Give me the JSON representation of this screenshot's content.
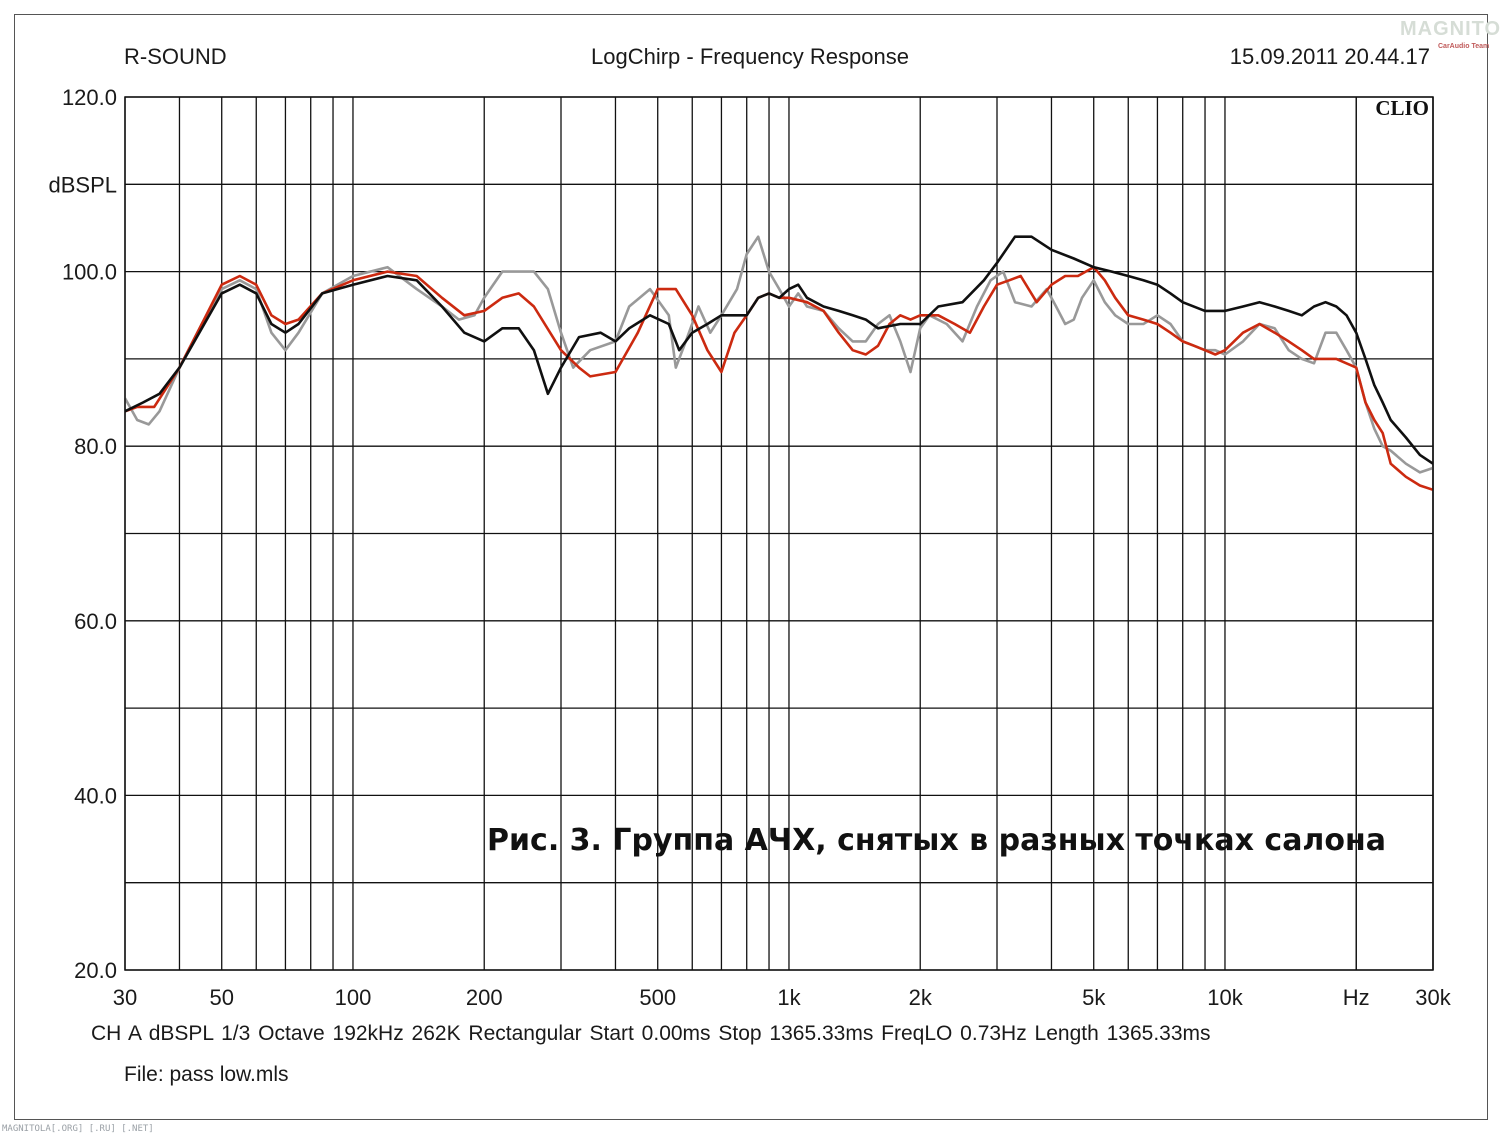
{
  "header": {
    "left": "R-SOUND",
    "center": "LogChirp - Frequency Response",
    "right": "15.09.2011 20.44.17"
  },
  "brand": {
    "name": "MAGNITOLA",
    "sub": "CarAudio Team"
  },
  "chart_data": {
    "type": "line",
    "title": "LogChirp - Frequency Response",
    "xlabel": "Hz",
    "ylabel": "dBSPL",
    "x_scale": "log",
    "xlim": [
      30,
      30000
    ],
    "ylim": [
      20,
      120
    ],
    "grid": true,
    "x_tick_labels": [
      {
        "f": 30,
        "label": "30"
      },
      {
        "f": 50,
        "label": "50"
      },
      {
        "f": 100,
        "label": "100"
      },
      {
        "f": 200,
        "label": "200"
      },
      {
        "f": 500,
        "label": "500"
      },
      {
        "f": 1000,
        "label": "1k"
      },
      {
        "f": 2000,
        "label": "2k"
      },
      {
        "f": 5000,
        "label": "5k"
      },
      {
        "f": 10000,
        "label": "10k"
      },
      {
        "f": 20000,
        "label": "Hz"
      },
      {
        "f": 30000,
        "label": "30k"
      }
    ],
    "y_tick_labels": [
      {
        "v": 120,
        "label": "120.0"
      },
      {
        "v": 110,
        "label": "dBSPL"
      },
      {
        "v": 100,
        "label": "100.0"
      },
      {
        "v": 80,
        "label": "80.0"
      },
      {
        "v": 60,
        "label": "60.0"
      },
      {
        "v": 40,
        "label": "40.0"
      },
      {
        "v": 20,
        "label": "20.0"
      }
    ],
    "annotation": "Рис. 3. Группа АЧХ, снятых в разных точках салона",
    "badge": "CLIO",
    "series": [
      {
        "color": "#999999",
        "points": [
          [
            30,
            85.5
          ],
          [
            32,
            83
          ],
          [
            34,
            82.5
          ],
          [
            36,
            84
          ],
          [
            40,
            89
          ],
          [
            45,
            94
          ],
          [
            50,
            98
          ],
          [
            55,
            99
          ],
          [
            60,
            98
          ],
          [
            65,
            93
          ],
          [
            70,
            91
          ],
          [
            75,
            93
          ],
          [
            85,
            97.5
          ],
          [
            100,
            99.5
          ],
          [
            120,
            100.5
          ],
          [
            140,
            98
          ],
          [
            160,
            96
          ],
          [
            175,
            94.5
          ],
          [
            190,
            95
          ],
          [
            200,
            97
          ],
          [
            220,
            100
          ],
          [
            260,
            100
          ],
          [
            280,
            98
          ],
          [
            300,
            93
          ],
          [
            320,
            89
          ],
          [
            350,
            91
          ],
          [
            400,
            92
          ],
          [
            430,
            96
          ],
          [
            480,
            98
          ],
          [
            530,
            95
          ],
          [
            550,
            89
          ],
          [
            580,
            92
          ],
          [
            620,
            96
          ],
          [
            660,
            93
          ],
          [
            700,
            95
          ],
          [
            760,
            98
          ],
          [
            800,
            102
          ],
          [
            850,
            104
          ],
          [
            900,
            100
          ],
          [
            950,
            98
          ],
          [
            1000,
            96
          ],
          [
            1050,
            97.5
          ],
          [
            1100,
            96
          ],
          [
            1200,
            95.5
          ],
          [
            1300,
            93.5
          ],
          [
            1400,
            92
          ],
          [
            1500,
            92
          ],
          [
            1600,
            94
          ],
          [
            1700,
            95
          ],
          [
            1800,
            92
          ],
          [
            1900,
            88.5
          ],
          [
            2000,
            93.5
          ],
          [
            2100,
            95
          ],
          [
            2300,
            94
          ],
          [
            2500,
            92
          ],
          [
            2700,
            96
          ],
          [
            2900,
            99
          ],
          [
            3100,
            100
          ],
          [
            3300,
            96.5
          ],
          [
            3600,
            96
          ],
          [
            3900,
            98
          ],
          [
            4100,
            96
          ],
          [
            4300,
            94
          ],
          [
            4500,
            94.5
          ],
          [
            4700,
            97
          ],
          [
            5000,
            99
          ],
          [
            5300,
            96.5
          ],
          [
            5600,
            95
          ],
          [
            6000,
            94
          ],
          [
            6500,
            94
          ],
          [
            7000,
            95
          ],
          [
            7500,
            94
          ],
          [
            8000,
            92
          ],
          [
            8500,
            91.5
          ],
          [
            9000,
            91
          ],
          [
            9500,
            91
          ],
          [
            10000,
            90.5
          ],
          [
            11000,
            92
          ],
          [
            12000,
            94
          ],
          [
            13000,
            93.5
          ],
          [
            14000,
            91
          ],
          [
            15000,
            90
          ],
          [
            16000,
            89.5
          ],
          [
            17000,
            93
          ],
          [
            18000,
            93
          ],
          [
            19000,
            91
          ],
          [
            20000,
            89
          ],
          [
            21000,
            85
          ],
          [
            22000,
            82
          ],
          [
            23000,
            80
          ],
          [
            24000,
            79.5
          ],
          [
            26000,
            78
          ],
          [
            28000,
            77
          ],
          [
            30000,
            77.5
          ]
        ]
      },
      {
        "color": "#cc2a10",
        "points": [
          [
            30,
            84
          ],
          [
            32,
            84.5
          ],
          [
            35,
            84.5
          ],
          [
            40,
            89
          ],
          [
            45,
            94
          ],
          [
            50,
            98.5
          ],
          [
            55,
            99.5
          ],
          [
            60,
            98.5
          ],
          [
            65,
            95
          ],
          [
            70,
            94
          ],
          [
            75,
            94.5
          ],
          [
            85,
            97.5
          ],
          [
            100,
            99
          ],
          [
            120,
            100
          ],
          [
            140,
            99.5
          ],
          [
            160,
            97
          ],
          [
            180,
            95
          ],
          [
            200,
            95.5
          ],
          [
            220,
            97
          ],
          [
            240,
            97.5
          ],
          [
            260,
            96
          ],
          [
            300,
            91
          ],
          [
            330,
            89
          ],
          [
            350,
            88
          ],
          [
            400,
            88.5
          ],
          [
            450,
            93
          ],
          [
            500,
            98
          ],
          [
            550,
            98
          ],
          [
            600,
            95
          ],
          [
            650,
            91
          ],
          [
            700,
            88.5
          ],
          [
            750,
            93
          ],
          [
            800,
            95
          ],
          [
            850,
            97
          ],
          [
            900,
            97.5
          ],
          [
            950,
            97
          ],
          [
            1000,
            97
          ],
          [
            1100,
            96.5
          ],
          [
            1200,
            95.5
          ],
          [
            1300,
            93
          ],
          [
            1400,
            91
          ],
          [
            1500,
            90.5
          ],
          [
            1600,
            91.5
          ],
          [
            1700,
            94
          ],
          [
            1800,
            95
          ],
          [
            1900,
            94.5
          ],
          [
            2000,
            95
          ],
          [
            2200,
            95
          ],
          [
            2400,
            94
          ],
          [
            2600,
            93
          ],
          [
            2800,
            96
          ],
          [
            3000,
            98.5
          ],
          [
            3200,
            99
          ],
          [
            3400,
            99.5
          ],
          [
            3700,
            96.5
          ],
          [
            4000,
            98.5
          ],
          [
            4300,
            99.5
          ],
          [
            4600,
            99.5
          ],
          [
            5000,
            100.5
          ],
          [
            5300,
            99
          ],
          [
            5600,
            97
          ],
          [
            6000,
            95
          ],
          [
            6500,
            94.5
          ],
          [
            7000,
            94
          ],
          [
            7500,
            93
          ],
          [
            8000,
            92
          ],
          [
            8500,
            91.5
          ],
          [
            9000,
            91
          ],
          [
            9500,
            90.5
          ],
          [
            10000,
            91
          ],
          [
            11000,
            93
          ],
          [
            12000,
            94
          ],
          [
            13000,
            93
          ],
          [
            14000,
            92
          ],
          [
            15000,
            91
          ],
          [
            16000,
            90
          ],
          [
            18000,
            90
          ],
          [
            20000,
            89
          ],
          [
            21000,
            85
          ],
          [
            22000,
            83
          ],
          [
            23000,
            81.5
          ],
          [
            24000,
            78
          ],
          [
            26000,
            76.5
          ],
          [
            28000,
            75.5
          ],
          [
            30000,
            75
          ]
        ]
      },
      {
        "color": "#101010",
        "points": [
          [
            30,
            84
          ],
          [
            33,
            85
          ],
          [
            36,
            86
          ],
          [
            40,
            89
          ],
          [
            45,
            93.5
          ],
          [
            50,
            97.5
          ],
          [
            55,
            98.5
          ],
          [
            60,
            97.5
          ],
          [
            65,
            94
          ],
          [
            70,
            93
          ],
          [
            75,
            94
          ],
          [
            85,
            97.5
          ],
          [
            100,
            98.5
          ],
          [
            120,
            99.5
          ],
          [
            140,
            99
          ],
          [
            160,
            96
          ],
          [
            180,
            93
          ],
          [
            200,
            92
          ],
          [
            220,
            93.5
          ],
          [
            240,
            93.5
          ],
          [
            260,
            91
          ],
          [
            280,
            86
          ],
          [
            300,
            89
          ],
          [
            330,
            92.5
          ],
          [
            370,
            93
          ],
          [
            400,
            92
          ],
          [
            430,
            93.5
          ],
          [
            480,
            95
          ],
          [
            530,
            94
          ],
          [
            560,
            91
          ],
          [
            600,
            93
          ],
          [
            650,
            94
          ],
          [
            700,
            95
          ],
          [
            750,
            95
          ],
          [
            800,
            95
          ],
          [
            850,
            97
          ],
          [
            900,
            97.5
          ],
          [
            950,
            97
          ],
          [
            1000,
            98
          ],
          [
            1050,
            98.5
          ],
          [
            1100,
            97
          ],
          [
            1200,
            96
          ],
          [
            1300,
            95.5
          ],
          [
            1400,
            95
          ],
          [
            1500,
            94.5
          ],
          [
            1600,
            93.5
          ],
          [
            1800,
            94
          ],
          [
            2000,
            94
          ],
          [
            2200,
            96
          ],
          [
            2500,
            96.5
          ],
          [
            2800,
            99
          ],
          [
            3000,
            101
          ],
          [
            3300,
            104
          ],
          [
            3600,
            104
          ],
          [
            4000,
            102.5
          ],
          [
            4500,
            101.5
          ],
          [
            5000,
            100.5
          ],
          [
            5500,
            100
          ],
          [
            6000,
            99.5
          ],
          [
            6500,
            99
          ],
          [
            7000,
            98.5
          ],
          [
            7500,
            97.5
          ],
          [
            8000,
            96.5
          ],
          [
            9000,
            95.5
          ],
          [
            10000,
            95.5
          ],
          [
            11000,
            96
          ],
          [
            12000,
            96.5
          ],
          [
            13000,
            96
          ],
          [
            14000,
            95.5
          ],
          [
            15000,
            95
          ],
          [
            16000,
            96
          ],
          [
            17000,
            96.5
          ],
          [
            18000,
            96
          ],
          [
            19000,
            95
          ],
          [
            20000,
            93
          ],
          [
            21000,
            90
          ],
          [
            22000,
            87
          ],
          [
            23000,
            85
          ],
          [
            24000,
            83
          ],
          [
            26000,
            81
          ],
          [
            28000,
            79
          ],
          [
            30000,
            78
          ]
        ]
      }
    ]
  },
  "footer": {
    "params": "CH A   dBSPL   1/3 Octave   192kHz   262K   Rectangular   Start 0.00ms   Stop 1365.33ms   FreqLO 0.73Hz   Length 1365.33ms",
    "file": "File: pass low.mls"
  },
  "watermark": "MAGNITOLA[.ORG] [.RU] [.NET]"
}
